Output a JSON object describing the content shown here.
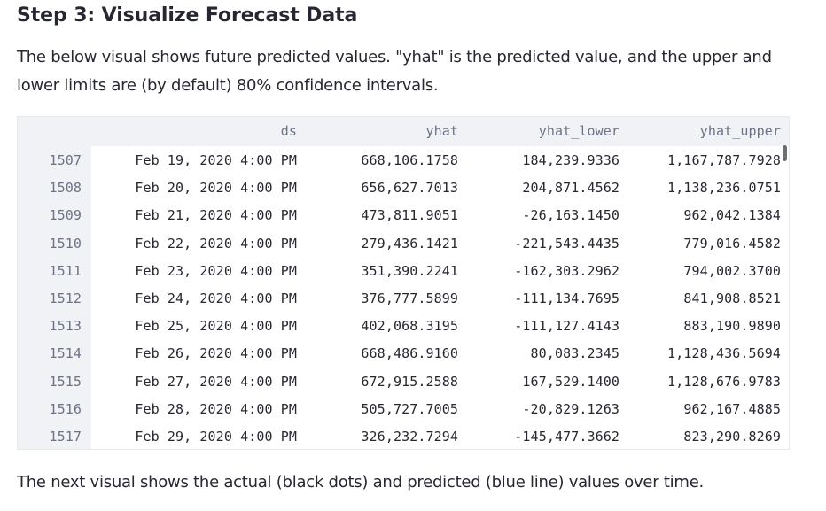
{
  "heading": "Step 3: Visualize Forecast Data",
  "intro": "The below visual shows future predicted values. \"yhat\" is the predicted value, and the upper and lower limits are (by default) 80% confidence intervals.",
  "table": {
    "columns": [
      "ds",
      "yhat",
      "yhat_lower",
      "yhat_upper"
    ],
    "rows": [
      {
        "index": "1507",
        "ds": "Feb 19, 2020 4:00 PM",
        "yhat": "668,106.1758",
        "yhat_lower": "184,239.9336",
        "yhat_upper": "1,167,787.7928"
      },
      {
        "index": "1508",
        "ds": "Feb 20, 2020 4:00 PM",
        "yhat": "656,627.7013",
        "yhat_lower": "204,871.4562",
        "yhat_upper": "1,138,236.0751"
      },
      {
        "index": "1509",
        "ds": "Feb 21, 2020 4:00 PM",
        "yhat": "473,811.9051",
        "yhat_lower": "-26,163.1450",
        "yhat_upper": "962,042.1384"
      },
      {
        "index": "1510",
        "ds": "Feb 22, 2020 4:00 PM",
        "yhat": "279,436.1421",
        "yhat_lower": "-221,543.4435",
        "yhat_upper": "779,016.4582"
      },
      {
        "index": "1511",
        "ds": "Feb 23, 2020 4:00 PM",
        "yhat": "351,390.2241",
        "yhat_lower": "-162,303.2962",
        "yhat_upper": "794,002.3700"
      },
      {
        "index": "1512",
        "ds": "Feb 24, 2020 4:00 PM",
        "yhat": "376,777.5899",
        "yhat_lower": "-111,134.7695",
        "yhat_upper": "841,908.8521"
      },
      {
        "index": "1513",
        "ds": "Feb 25, 2020 4:00 PM",
        "yhat": "402,068.3195",
        "yhat_lower": "-111,127.4143",
        "yhat_upper": "883,190.9890"
      },
      {
        "index": "1514",
        "ds": "Feb 26, 2020 4:00 PM",
        "yhat": "668,486.9160",
        "yhat_lower": "80,083.2345",
        "yhat_upper": "1,128,436.5694"
      },
      {
        "index": "1515",
        "ds": "Feb 27, 2020 4:00 PM",
        "yhat": "672,915.2588",
        "yhat_lower": "167,529.1400",
        "yhat_upper": "1,128,676.9783"
      },
      {
        "index": "1516",
        "ds": "Feb 28, 2020 4:00 PM",
        "yhat": "505,727.7005",
        "yhat_lower": "-20,829.1263",
        "yhat_upper": "962,167.4885"
      },
      {
        "index": "1517",
        "ds": "Feb 29, 2020 4:00 PM",
        "yhat": "326,232.7294",
        "yhat_lower": "-145,477.3662",
        "yhat_upper": "823,290.8269"
      }
    ]
  },
  "footer": "The next visual shows the actual (black dots) and predicted (blue line) values over time.",
  "colors": {
    "text": "#262730",
    "muted": "#6d7285",
    "header_bg": "#f0f2f6",
    "border": "#e6e9ef"
  }
}
